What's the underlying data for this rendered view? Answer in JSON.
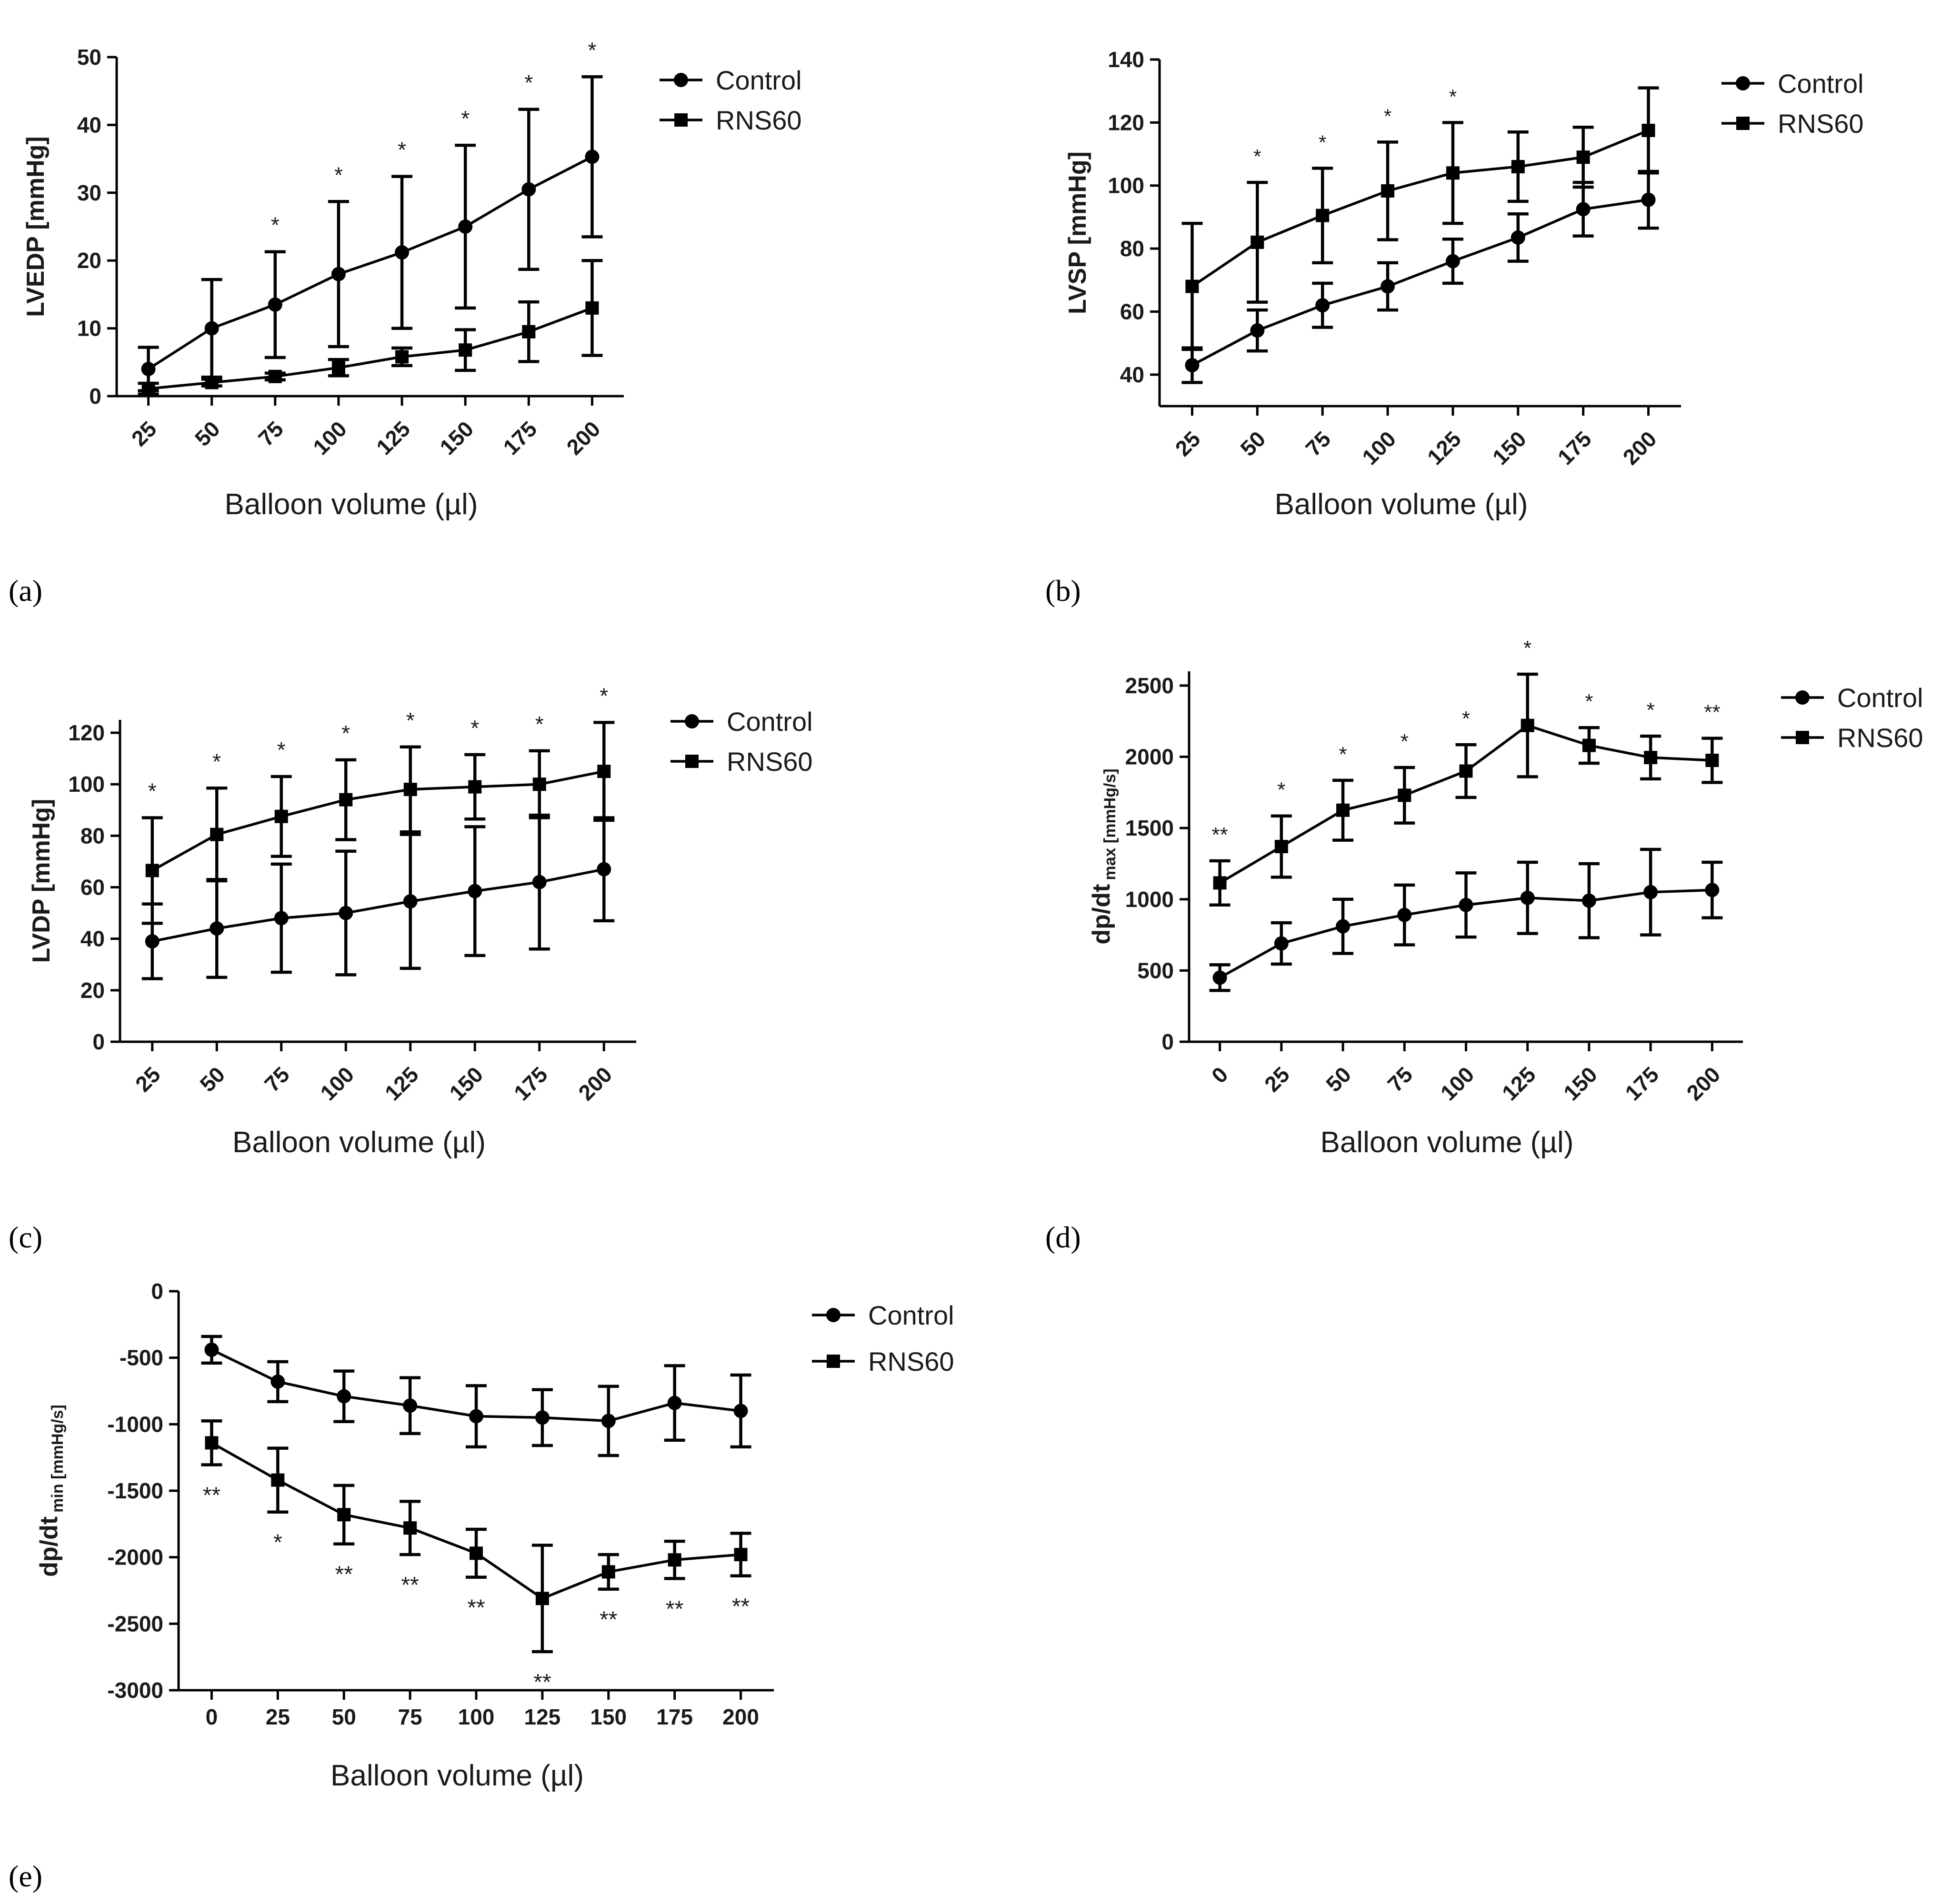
{
  "chart_data": [
    {
      "type": "line",
      "panel": "(a)",
      "ylabel": "LVEDP [mmHg]",
      "xlabel": "Balloon volume (µl)",
      "ylim": [
        0,
        50
      ],
      "yticks": [
        0,
        10,
        20,
        30,
        40,
        50
      ],
      "categories": [
        "25",
        "50",
        "75",
        "100",
        "125",
        "150",
        "175",
        "200"
      ],
      "series": [
        {
          "name": "Control",
          "marker": "circle",
          "values": [
            4,
            10,
            13.5,
            18,
            21.2,
            25,
            30.5,
            35.3
          ],
          "err_up": [
            3.2,
            7.2,
            7.8,
            10.7,
            11.2,
            12,
            11.8,
            11.8
          ],
          "err_down": [
            3.2,
            7.2,
            7.8,
            10.7,
            11.2,
            12,
            11.8,
            11.8
          ]
        },
        {
          "name": "RNS60",
          "marker": "square",
          "values": [
            1.1,
            2,
            2.9,
            4.2,
            5.8,
            6.8,
            9.5,
            13
          ],
          "err_up": [
            0.8,
            0.5,
            0.5,
            1.2,
            1.3,
            3,
            4.4,
            7
          ],
          "err_down": [
            0.8,
            0.5,
            0.5,
            1.2,
            1.3,
            3,
            4.4,
            7
          ]
        }
      ],
      "significance": [
        "",
        "",
        "*",
        "*",
        "*",
        "*",
        "*",
        "*"
      ],
      "legend": "top-right"
    },
    {
      "type": "line",
      "panel": "(b)",
      "ylabel": "LVSP [mmHg]",
      "xlabel": "Balloon volume (µl)",
      "ylim": [
        30,
        140
      ],
      "yticks": [
        40,
        60,
        80,
        100,
        120,
        140
      ],
      "categories": [
        "25",
        "50",
        "75",
        "100",
        "125",
        "150",
        "175",
        "200"
      ],
      "series": [
        {
          "name": "Control",
          "marker": "circle",
          "values": [
            43,
            54,
            62,
            68,
            76,
            83.5,
            92.5,
            95.5
          ],
          "err_up": [
            5.5,
            6.5,
            7,
            7.5,
            7,
            7.5,
            8.5,
            9
          ],
          "err_down": [
            5.5,
            6.5,
            7,
            7.5,
            7,
            7.5,
            8.5,
            9
          ]
        },
        {
          "name": "RNS60",
          "marker": "square",
          "values": [
            68,
            82,
            90.5,
            98.3,
            104,
            106,
            109,
            117.5
          ],
          "err_up": [
            20,
            19,
            15,
            15.5,
            16,
            11,
            9.5,
            13.5
          ],
          "err_down": [
            20,
            19,
            15,
            15.5,
            16,
            11,
            9.5,
            13.5
          ]
        }
      ],
      "significance": [
        "",
        "*",
        "*",
        "*",
        "*",
        "",
        "",
        ""
      ],
      "legend": "top-right"
    },
    {
      "type": "line",
      "panel": "(c)",
      "ylabel": "LVDP [mmHg]",
      "xlabel": "Balloon volume (µl)",
      "ylim": [
        0,
        125
      ],
      "yticks": [
        0,
        20,
        40,
        60,
        80,
        100,
        120
      ],
      "categories": [
        "25",
        "50",
        "75",
        "100",
        "125",
        "150",
        "175",
        "200"
      ],
      "series": [
        {
          "name": "Control",
          "marker": "circle",
          "values": [
            39,
            44,
            48,
            50,
            54.5,
            58.5,
            62,
            67
          ],
          "err_up": [
            14.5,
            19,
            21,
            24,
            26,
            25,
            26,
            20
          ],
          "err_down": [
            14.5,
            19,
            21,
            24,
            26,
            25,
            26,
            20
          ]
        },
        {
          "name": "RNS60",
          "marker": "square",
          "values": [
            66.5,
            80.5,
            87.5,
            94,
            98,
            99,
            100,
            105
          ],
          "err_up": [
            20.5,
            18,
            15.5,
            15.5,
            16.5,
            12.5,
            13,
            19
          ],
          "err_down": [
            20.5,
            18,
            15.5,
            15.5,
            16.5,
            12.5,
            13,
            19
          ]
        }
      ],
      "significance": [
        "*",
        "*",
        "*",
        "*",
        "*",
        "*",
        "*",
        "*"
      ],
      "legend": "top-right"
    },
    {
      "type": "line",
      "panel": "(d)",
      "ylabel": "dp/dt",
      "ylabel_sub": "max [mmHg/s]",
      "xlabel": "Balloon volume (µl)",
      "ylim": [
        0,
        2600
      ],
      "yticks": [
        0,
        500,
        1000,
        1500,
        2000,
        2500
      ],
      "categories": [
        "0",
        "25",
        "50",
        "75",
        "100",
        "125",
        "150",
        "175",
        "200"
      ],
      "series": [
        {
          "name": "Control",
          "marker": "circle",
          "values": [
            450,
            690,
            810,
            890,
            960,
            1010,
            990,
            1050,
            1065
          ],
          "err_up": [
            90,
            145,
            190,
            210,
            225,
            250,
            260,
            300,
            195
          ],
          "err_down": [
            90,
            145,
            190,
            210,
            225,
            250,
            260,
            300,
            195
          ]
        },
        {
          "name": "RNS60",
          "marker": "square",
          "values": [
            1115,
            1370,
            1625,
            1730,
            1900,
            2220,
            2080,
            1995,
            1975
          ],
          "err_up": [
            155,
            215,
            210,
            195,
            185,
            360,
            125,
            150,
            155
          ],
          "err_down": [
            155,
            215,
            210,
            195,
            185,
            360,
            125,
            150,
            155
          ]
        }
      ],
      "significance": [
        "**",
        "*",
        "*",
        "*",
        "*",
        "*",
        "*",
        "*",
        "**"
      ],
      "legend": "top-right"
    },
    {
      "type": "line",
      "panel": "(e)",
      "ylabel": "dp/dt",
      "ylabel_sub": "min [mmHg/s]",
      "xlabel": "Balloon volume (µl)",
      "ylim": [
        -3000,
        0
      ],
      "yticks": [
        0,
        -500,
        -1000,
        -1500,
        -2000,
        -2500,
        -3000
      ],
      "categories": [
        "0",
        "25",
        "50",
        "75",
        "100",
        "125",
        "150",
        "175",
        "200"
      ],
      "series": [
        {
          "name": "Control",
          "marker": "circle",
          "values": [
            -440,
            -680,
            -790,
            -860,
            -940,
            -950,
            -975,
            -840,
            -900
          ],
          "err_up": [
            100,
            150,
            190,
            210,
            230,
            210,
            260,
            280,
            270
          ],
          "err_down": [
            100,
            150,
            190,
            210,
            230,
            210,
            260,
            280,
            270
          ]
        },
        {
          "name": "RNS60",
          "marker": "square",
          "values": [
            -1140,
            -1420,
            -1680,
            -1780,
            -1970,
            -2310,
            -2110,
            -2020,
            -1980
          ],
          "err_up": [
            165,
            240,
            220,
            200,
            180,
            400,
            130,
            140,
            160
          ],
          "err_down": [
            165,
            240,
            220,
            200,
            180,
            400,
            130,
            140,
            160
          ]
        }
      ],
      "significance": [
        "**",
        "*",
        "**",
        "**",
        "**",
        "**",
        "**",
        "**",
        "**"
      ],
      "legend": "top-right"
    }
  ]
}
